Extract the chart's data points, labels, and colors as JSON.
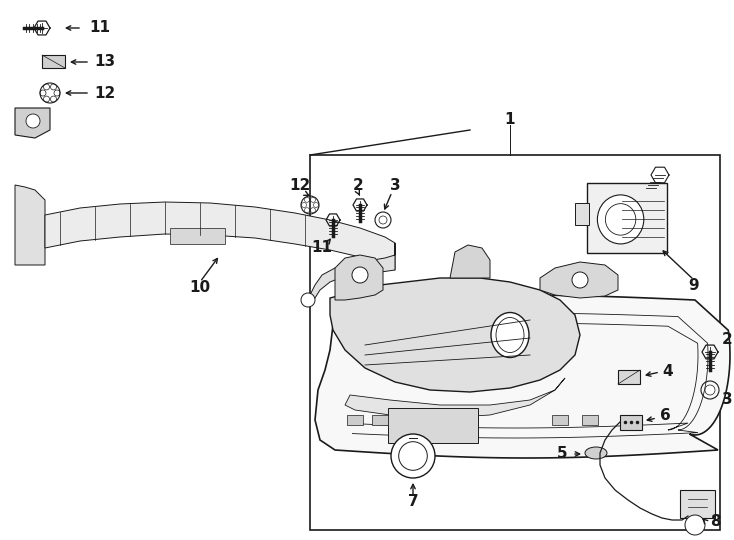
{
  "bg_color": "#ffffff",
  "line_color": "#1a1a1a",
  "figsize": [
    7.34,
    5.4
  ],
  "dpi": 100,
  "bracket_color": "#f0f0f0",
  "lamp_face_color": "#f5f5f5",
  "lamp_inner_color": "#e8e8e8"
}
